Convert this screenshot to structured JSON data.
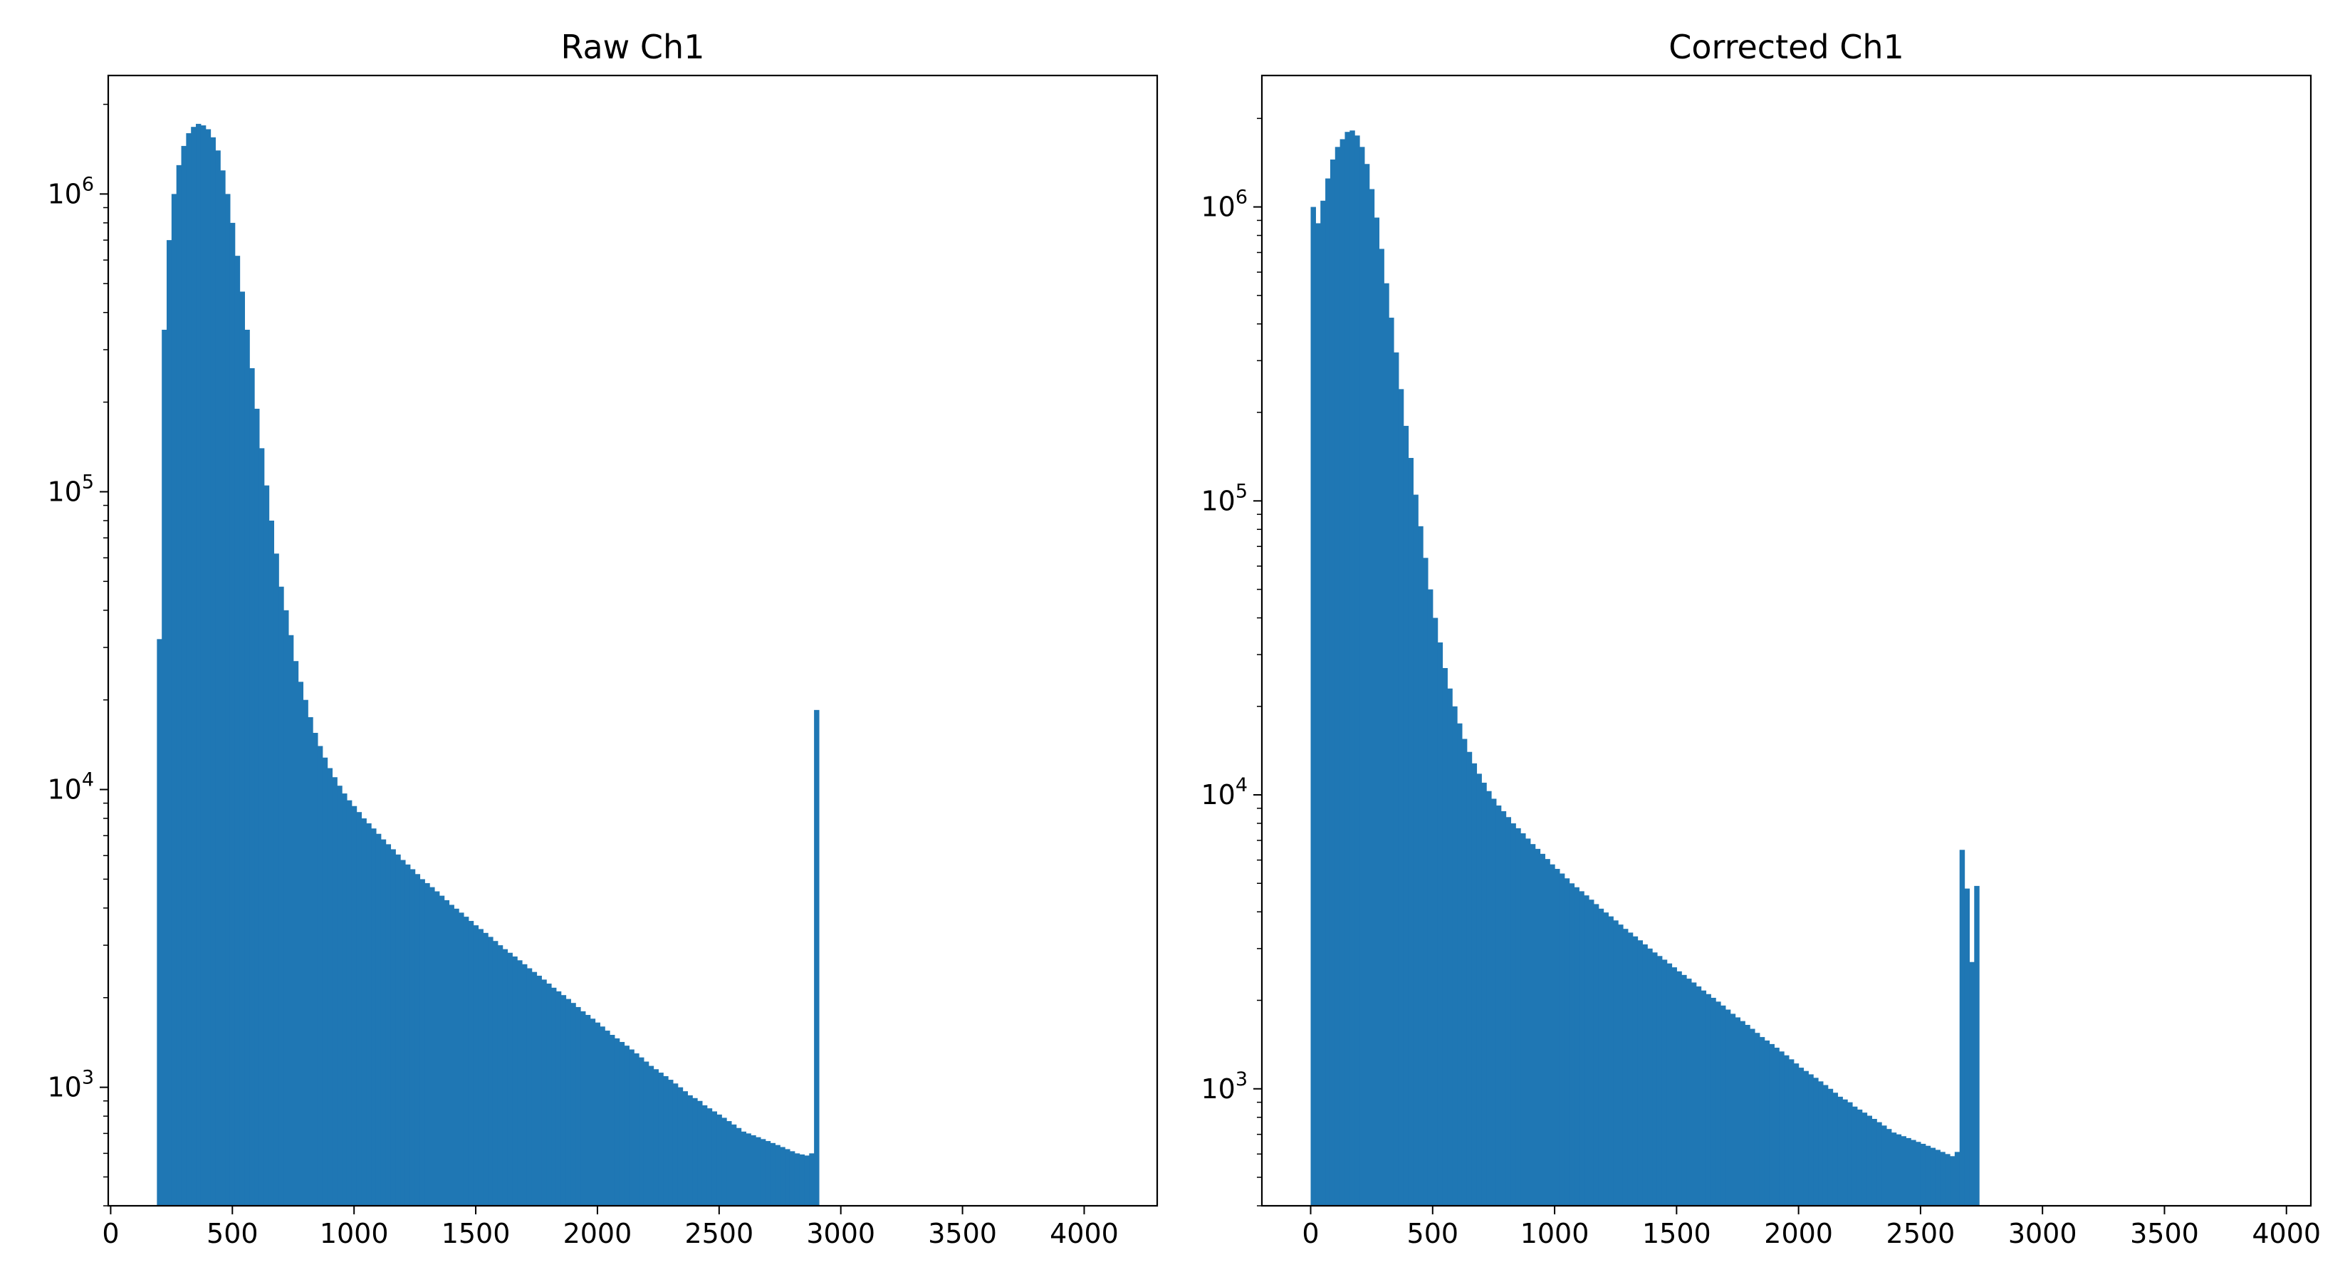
{
  "chart_data": [
    {
      "type": "bar",
      "title": "Raw Ch1",
      "xlabel": "",
      "ylabel": "",
      "yscale": "log",
      "xlim": [
        -10,
        4300
      ],
      "ylim": [
        400,
        2500000
      ],
      "x_ticks": [
        0,
        500,
        1000,
        1500,
        2000,
        2500,
        3000,
        3500,
        4000
      ],
      "x_tick_labels": [
        "0",
        "500",
        "1000",
        "1500",
        "2000",
        "2500",
        "3000",
        "3500",
        "4000"
      ],
      "y_ticks": [
        1000,
        10000,
        100000,
        1000000
      ],
      "y_tick_labels": [
        "10^3",
        "10^4",
        "10^5",
        "10^6"
      ],
      "grid": false,
      "color": "#1f77b4",
      "bin_start": 190,
      "bin_width": 20,
      "counts": [
        32000,
        350000,
        700000,
        1000000,
        1250000,
        1450000,
        1600000,
        1680000,
        1720000,
        1700000,
        1650000,
        1550000,
        1400000,
        1200000,
        1000000,
        800000,
        620000,
        470000,
        350000,
        260000,
        190000,
        140000,
        105000,
        80000,
        62000,
        48000,
        40000,
        33000,
        27000,
        23000,
        20000,
        17500,
        15500,
        14000,
        12800,
        11800,
        11000,
        10300,
        9700,
        9200,
        8800,
        8400,
        8000,
        7700,
        7400,
        7100,
        6800,
        6550,
        6300,
        6050,
        5800,
        5600,
        5400,
        5200,
        5000,
        4850,
        4700,
        4550,
        4400,
        4250,
        4100,
        3980,
        3860,
        3740,
        3620,
        3500,
        3400,
        3300,
        3200,
        3100,
        3000,
        2910,
        2830,
        2750,
        2670,
        2590,
        2510,
        2440,
        2370,
        2300,
        2230,
        2160,
        2100,
        2040,
        1980,
        1920,
        1860,
        1800,
        1750,
        1700,
        1650,
        1600,
        1550,
        1500,
        1460,
        1420,
        1380,
        1340,
        1300,
        1260,
        1220,
        1180,
        1150,
        1120,
        1090,
        1060,
        1030,
        1000,
        970,
        940,
        920,
        900,
        870,
        850,
        830,
        810,
        790,
        770,
        750,
        730,
        710,
        700,
        690,
        680,
        670,
        660,
        650,
        640,
        630,
        620,
        610,
        600,
        595,
        590,
        600,
        18500
      ]
    },
    {
      "type": "bar",
      "title": "Corrected Ch1",
      "xlabel": "",
      "ylabel": "",
      "yscale": "log",
      "xlim": [
        -200,
        4100
      ],
      "ylim": [
        400,
        2800000
      ],
      "x_ticks": [
        0,
        500,
        1000,
        1500,
        2000,
        2500,
        3000,
        3500,
        4000
      ],
      "x_tick_labels": [
        "0",
        "500",
        "1000",
        "1500",
        "2000",
        "2500",
        "3000",
        "3500",
        "4000"
      ],
      "y_ticks": [
        1000,
        10000,
        100000,
        1000000
      ],
      "y_tick_labels": [
        "10^3",
        "10^4",
        "10^5",
        "10^6"
      ],
      "grid": false,
      "color": "#1f77b4",
      "bin_start": 0,
      "bin_width": 20,
      "counts": [
        1000000,
        880000,
        1050000,
        1250000,
        1450000,
        1600000,
        1700000,
        1800000,
        1820000,
        1750000,
        1600000,
        1400000,
        1150000,
        920000,
        720000,
        550000,
        420000,
        320000,
        240000,
        180000,
        140000,
        105000,
        82000,
        64000,
        50000,
        40000,
        33000,
        27000,
        23000,
        20000,
        17500,
        15500,
        14000,
        12800,
        11800,
        11000,
        10300,
        9700,
        9200,
        8800,
        8400,
        8000,
        7700,
        7400,
        7100,
        6800,
        6550,
        6300,
        6050,
        5800,
        5600,
        5400,
        5200,
        5000,
        4850,
        4700,
        4550,
        4400,
        4250,
        4100,
        3980,
        3860,
        3740,
        3620,
        3500,
        3400,
        3300,
        3200,
        3100,
        3000,
        2910,
        2830,
        2750,
        2670,
        2590,
        2510,
        2440,
        2370,
        2300,
        2230,
        2160,
        2100,
        2040,
        1980,
        1920,
        1860,
        1800,
        1750,
        1700,
        1650,
        1600,
        1550,
        1500,
        1460,
        1420,
        1380,
        1340,
        1300,
        1260,
        1220,
        1180,
        1150,
        1120,
        1090,
        1060,
        1030,
        1000,
        970,
        940,
        920,
        900,
        870,
        850,
        830,
        810,
        790,
        770,
        750,
        730,
        710,
        700,
        690,
        680,
        670,
        660,
        650,
        640,
        630,
        620,
        610,
        600,
        590,
        610,
        6500,
        4800,
        2700,
        4900
      ]
    }
  ]
}
